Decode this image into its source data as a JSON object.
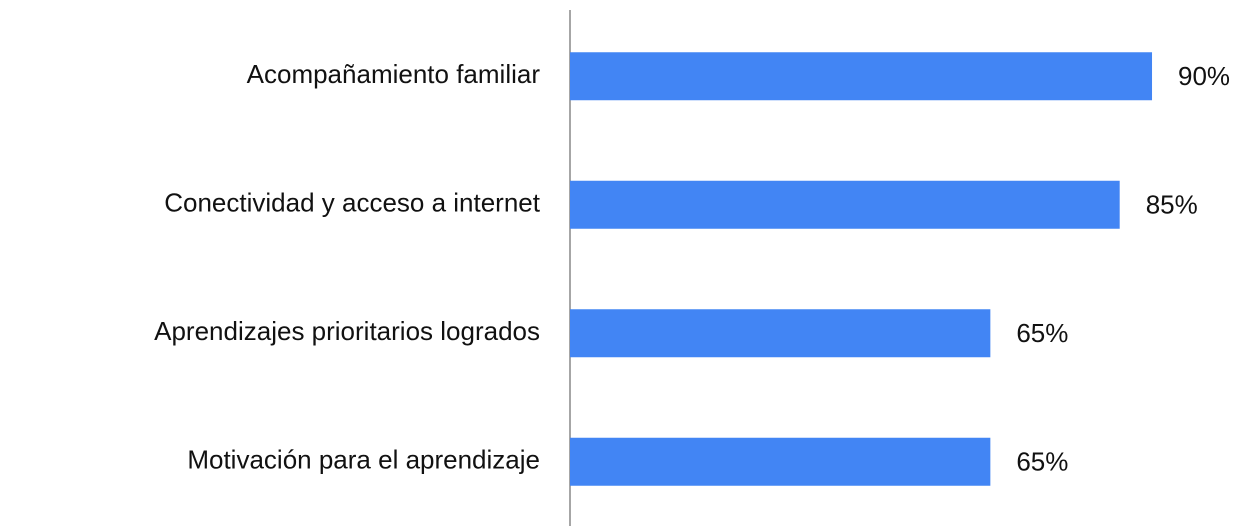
{
  "chart_data": {
    "type": "bar",
    "orientation": "horizontal",
    "categories": [
      "Acompañamiento familiar",
      "Conectividad y acceso a internet",
      "Aprendizajes prioritarios logrados",
      "Motivación para el aprendizaje"
    ],
    "values": [
      90,
      85,
      65,
      65
    ],
    "value_labels": [
      "90%",
      "85%",
      "65%",
      "65%"
    ],
    "color": "#4285f4"
  }
}
